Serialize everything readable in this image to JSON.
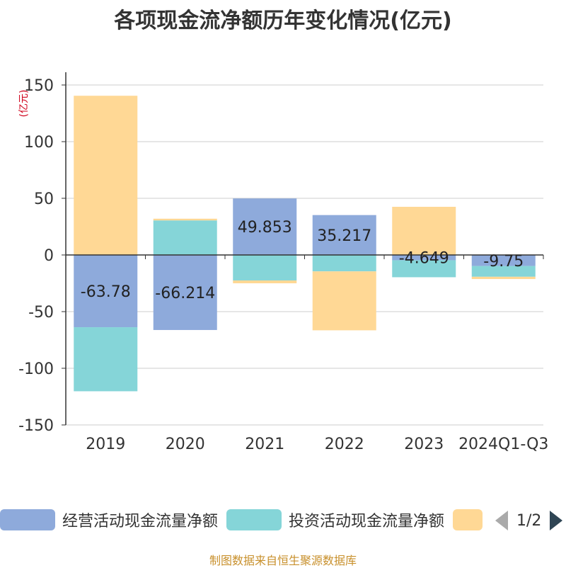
{
  "chart_data": {
    "type": "bar",
    "stacked": true,
    "title": "各项现金流净额历年变化情况(亿元)",
    "unit_label": "(亿元)",
    "categories": [
      "2019",
      "2020",
      "2021",
      "2022",
      "2023",
      "2024Q1-Q3"
    ],
    "ylim": [
      -150,
      150
    ],
    "yticks": [
      150,
      100,
      50,
      0,
      -50,
      -100,
      -150
    ],
    "grid": true,
    "legend_position": "bottom",
    "series": [
      {
        "name": "经营活动现金流量净额",
        "color": "#8eaadb",
        "values": [
          -63.78,
          -66.214,
          49.853,
          35.217,
          -4.649,
          -9.75
        ],
        "show_labels": true
      },
      {
        "name": "投资活动现金流量净额",
        "color": "#85d5d8",
        "values": [
          -56.5,
          30.5,
          -22.5,
          -14.5,
          -15.0,
          -9.5
        ],
        "show_labels": false
      },
      {
        "name": "",
        "color": "#ffd895",
        "values": [
          140.5,
          1.5,
          -2.5,
          -52.0,
          42.5,
          -2.0
        ],
        "show_labels": false
      }
    ]
  },
  "legend": {
    "page_indicator": "1/2"
  },
  "source_text": "制图数据来自恒生聚源数据库"
}
